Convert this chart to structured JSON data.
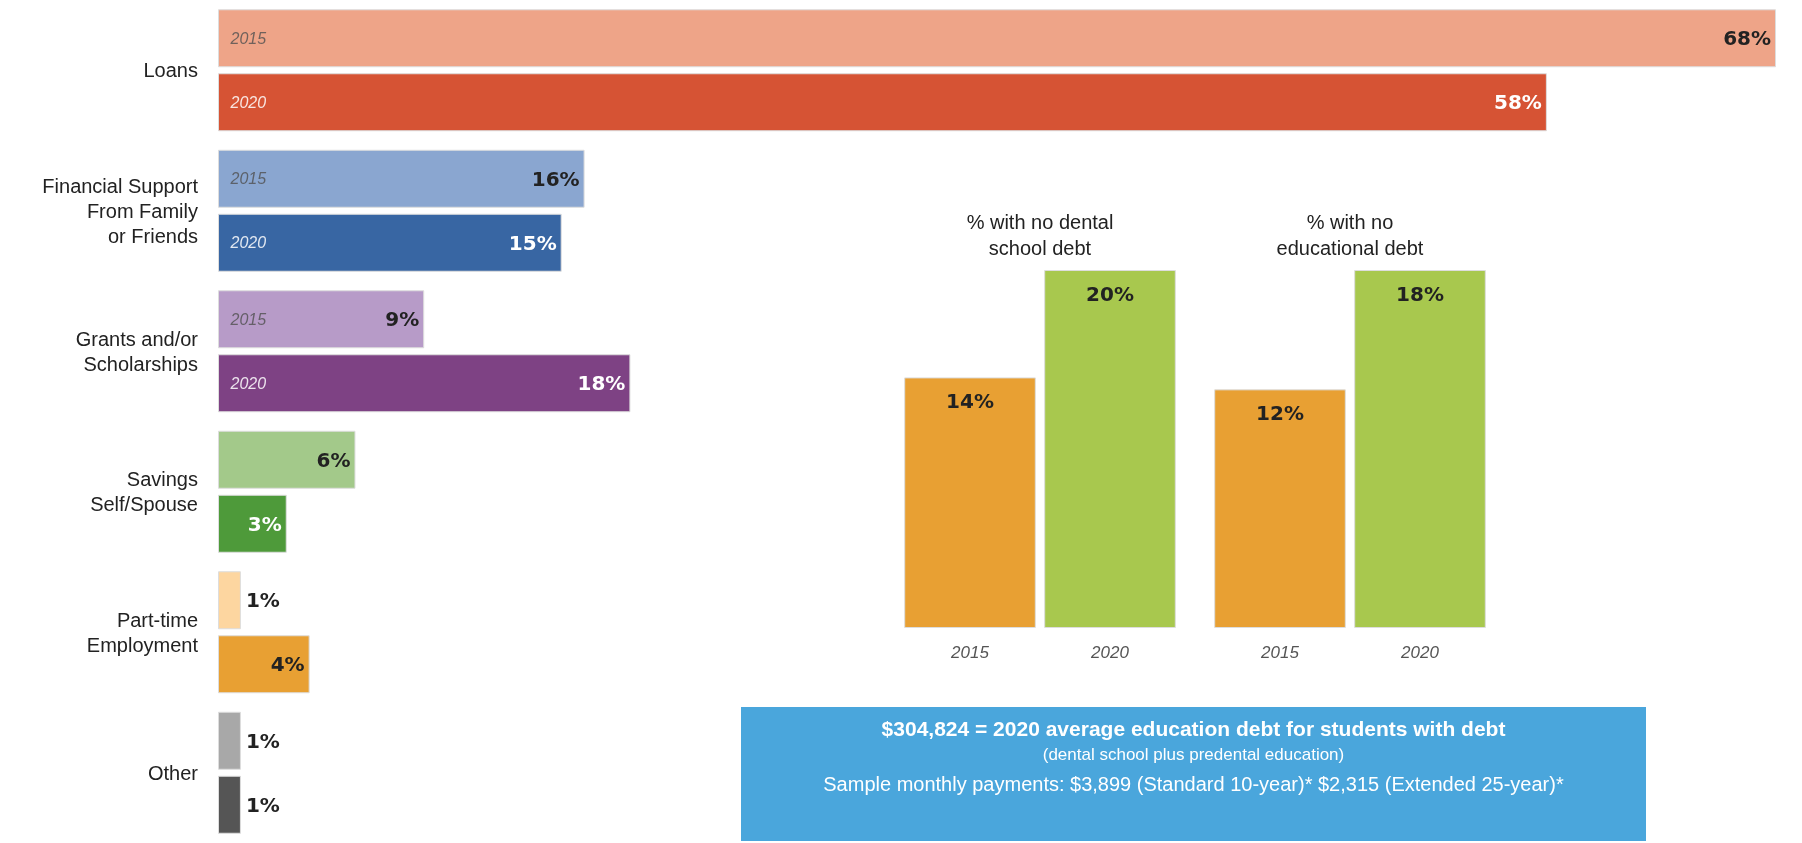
{
  "chart_data": [
    {
      "type": "bar",
      "orientation": "horizontal",
      "categories": [
        "Loans",
        "Financial Support\nFrom Family\nor Friends",
        "Grants and/or\nScholarships",
        "Savings\nSelf/Spouse",
        "Part-time\nEmployment",
        "Other"
      ],
      "series": [
        {
          "name": "2015",
          "values": [
            68,
            16,
            9,
            6,
            1,
            1
          ],
          "value_labels": [
            "68%",
            "16%",
            "9%",
            "6%",
            "1%",
            "1%"
          ],
          "colors": [
            "#eea488",
            "#8aa6d0",
            "#b79bc8",
            "#a3c98a",
            "#fdd6a0",
            "#a8a8a8"
          ]
        },
        {
          "name": "2020",
          "values": [
            58,
            15,
            18,
            3,
            4,
            1
          ],
          "value_labels": [
            "58%",
            "15%",
            "18%",
            "3%",
            "4%",
            "1%"
          ],
          "colors": [
            "#d65334",
            "#3866a3",
            "#7e4284",
            "#4e9a3a",
            "#e8a033",
            "#555555"
          ]
        }
      ],
      "tick_labels": "y"
    },
    {
      "type": "bar",
      "title": "% with no dental\nschool debt",
      "categories": [
        "2015",
        "2020"
      ],
      "values": [
        14,
        20
      ],
      "value_labels": [
        "14%",
        "20%"
      ],
      "colors": [
        "#e8a033",
        "#a8c84e"
      ],
      "tick_labels": "x"
    },
    {
      "type": "bar",
      "title": "% with no\neducational debt",
      "categories": [
        "2015",
        "2020"
      ],
      "values": [
        12,
        18
      ],
      "value_labels": [
        "12%",
        "18%"
      ],
      "colors": [
        "#e8a033",
        "#a8c84e"
      ],
      "tick_labels": "x"
    },
    {
      "type": "other",
      "title": "$304,824 = 2020 average education debt for students with debt",
      "subtitle": "(dental school plus predental education)",
      "annotations": [
        "Sample monthly payments: $3,899 (Standard 10-year)* $2,315 (Extended 25-year)*"
      ]
    }
  ]
}
